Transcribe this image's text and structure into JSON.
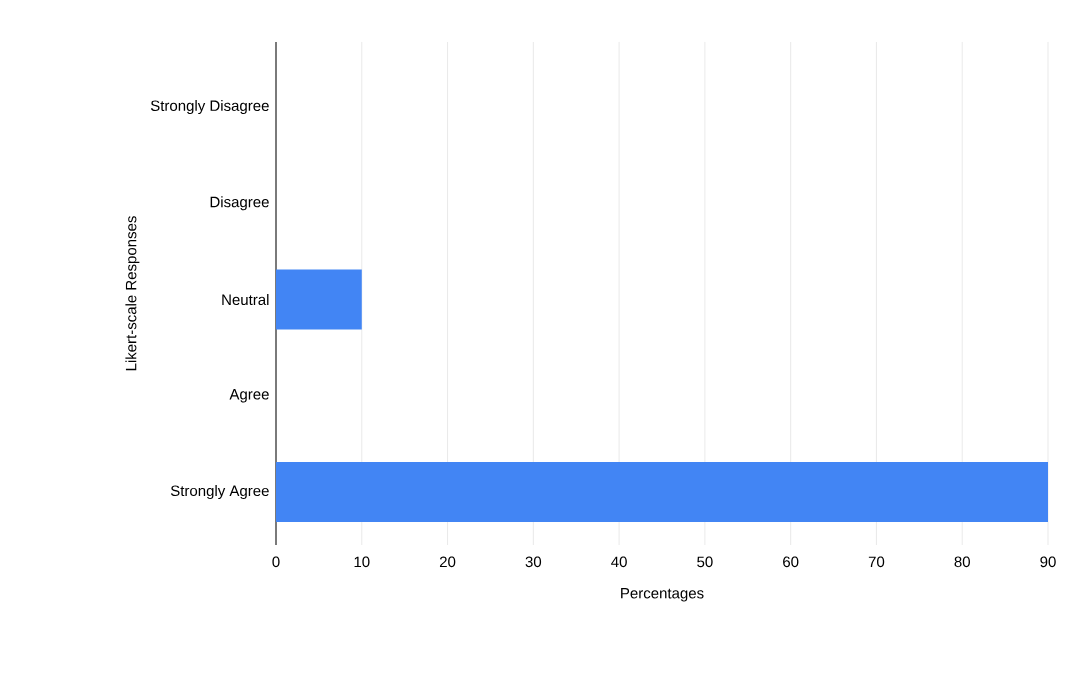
{
  "chart_data": {
    "type": "bar",
    "orientation": "horizontal",
    "categories": [
      "Strongly Disagree",
      "Disagree",
      "Neutral",
      "Agree",
      "Strongly Agree"
    ],
    "values": [
      0,
      0,
      10,
      0,
      90
    ],
    "color": "#4285f4",
    "xlim": [
      0,
      90
    ],
    "xticks": [
      0,
      10,
      20,
      30,
      40,
      50,
      60,
      70,
      80,
      90
    ],
    "xlabel": "Percentages",
    "ylabel": "Likert-scale Responses",
    "grid": "x"
  }
}
